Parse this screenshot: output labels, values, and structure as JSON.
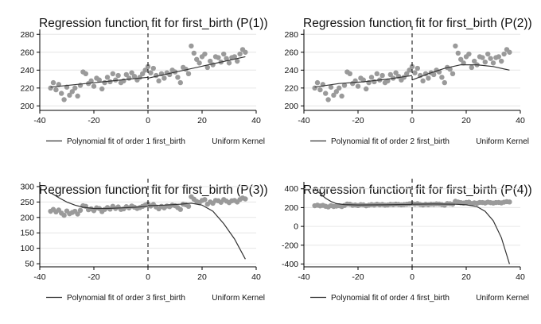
{
  "chart_data": [
    {
      "type": "scatter",
      "title": "Regression function fit for first_birth (P(1))",
      "xlim": [
        -40,
        40
      ],
      "ylim": [
        195,
        282
      ],
      "xticks": [
        -40,
        -20,
        0,
        20,
        40
      ],
      "yticks": [
        200,
        220,
        240,
        260,
        280
      ],
      "xtick_labels": [
        "-40",
        "-20",
        "0",
        "20",
        "40"
      ],
      "ytick_labels": [
        "200",
        "220",
        "240",
        "260",
        "280"
      ],
      "grid": true,
      "cutoff": 0,
      "legend": {
        "position": "bottom",
        "entries": [
          "Polynomial fit of order 1 first_birth",
          "Uniform Kernel"
        ]
      },
      "series": [
        {
          "kind": "points",
          "x": [
            -36,
            -35,
            -34,
            -33,
            -32,
            -31,
            -30,
            -29,
            -28,
            -27,
            -26,
            -25,
            -24,
            -23,
            -22,
            -21,
            -20,
            -19,
            -18,
            -17,
            -16,
            -15,
            -14,
            -13,
            -12,
            -11,
            -10,
            -9,
            -8,
            -7,
            -6,
            -5,
            -4,
            -3,
            -2,
            -1,
            0,
            1,
            2,
            3,
            4,
            5,
            6,
            7,
            8,
            9,
            10,
            11,
            12,
            13,
            14,
            15,
            16,
            17,
            18,
            19,
            20,
            21,
            22,
            23,
            24,
            25,
            26,
            27,
            28,
            29,
            30,
            31,
            32,
            33,
            34,
            35,
            36
          ],
          "y": [
            220,
            226,
            218,
            224,
            214,
            207,
            221,
            212,
            216,
            220,
            211,
            223,
            238,
            236,
            225,
            228,
            222,
            231,
            229,
            219,
            226,
            232,
            227,
            236,
            229,
            234,
            226,
            228,
            235,
            231,
            237,
            233,
            229,
            232,
            236,
            240,
            244,
            237,
            242,
            234,
            228,
            236,
            231,
            237,
            235,
            240,
            238,
            232,
            226,
            243,
            241,
            236,
            267,
            259,
            252,
            248,
            255,
            258,
            243,
            250,
            246,
            255,
            254,
            249,
            258,
            253,
            248,
            254,
            255,
            250,
            258,
            263,
            260
          ]
        },
        {
          "kind": "fit",
          "segments": [
            {
              "x": [
                -36,
                0
              ],
              "y": [
                221,
                232
              ]
            },
            {
              "x": [
                0,
                36
              ],
              "y": [
                231,
                255
              ]
            }
          ]
        }
      ]
    },
    {
      "type": "scatter",
      "title": "Regression function fit for first_birth (P(2))",
      "xlim": [
        -40,
        40
      ],
      "ylim": [
        195,
        282
      ],
      "xticks": [
        -40,
        -20,
        0,
        20,
        40
      ],
      "yticks": [
        200,
        220,
        240,
        260,
        280
      ],
      "xtick_labels": [
        "-40",
        "-20",
        "0",
        "20",
        "40"
      ],
      "ytick_labels": [
        "200",
        "220",
        "240",
        "260",
        "280"
      ],
      "grid": true,
      "cutoff": 0,
      "legend": {
        "position": "bottom",
        "entries": [
          "Polynomial fit of order 2 first_birth",
          "Uniform Kernel"
        ]
      },
      "series": [
        {
          "kind": "points",
          "x": [
            -36,
            -35,
            -34,
            -33,
            -32,
            -31,
            -30,
            -29,
            -28,
            -27,
            -26,
            -25,
            -24,
            -23,
            -22,
            -21,
            -20,
            -19,
            -18,
            -17,
            -16,
            -15,
            -14,
            -13,
            -12,
            -11,
            -10,
            -9,
            -8,
            -7,
            -6,
            -5,
            -4,
            -3,
            -2,
            -1,
            0,
            1,
            2,
            3,
            4,
            5,
            6,
            7,
            8,
            9,
            10,
            11,
            12,
            13,
            14,
            15,
            16,
            17,
            18,
            19,
            20,
            21,
            22,
            23,
            24,
            25,
            26,
            27,
            28,
            29,
            30,
            31,
            32,
            33,
            34,
            35,
            36
          ],
          "y": [
            220,
            226,
            218,
            224,
            214,
            207,
            221,
            212,
            216,
            220,
            211,
            223,
            238,
            236,
            225,
            228,
            222,
            231,
            229,
            219,
            226,
            232,
            227,
            236,
            229,
            234,
            226,
            228,
            235,
            231,
            237,
            233,
            229,
            232,
            236,
            240,
            244,
            237,
            242,
            234,
            228,
            236,
            231,
            237,
            235,
            240,
            238,
            232,
            226,
            243,
            241,
            236,
            267,
            259,
            252,
            248,
            255,
            258,
            243,
            250,
            246,
            255,
            254,
            249,
            258,
            253,
            248,
            254,
            255,
            250,
            258,
            263,
            260
          ]
        },
        {
          "kind": "fit",
          "segments": [
            {
              "x": [
                -36,
                -27,
                -18,
                -9,
                0
              ],
              "y": [
                221,
                225,
                227,
                230,
                234
              ]
            },
            {
              "x": [
                0,
                6,
                12,
                18,
                24,
                30,
                36
              ],
              "y": [
                229,
                236,
                242,
                246,
                246,
                244,
                240
              ]
            }
          ]
        }
      ]
    },
    {
      "type": "scatter",
      "title": "Regression function fit for first_birth (P(3))",
      "xlim": [
        -40,
        40
      ],
      "ylim": [
        40,
        305
      ],
      "xticks": [
        -40,
        -20,
        0,
        20,
        40
      ],
      "yticks": [
        50,
        100,
        150,
        200,
        250,
        300
      ],
      "xtick_labels": [
        "-40",
        "-20",
        "0",
        "20",
        "40"
      ],
      "ytick_labels": [
        "50",
        "100",
        "150",
        "200",
        "250",
        "300"
      ],
      "grid": true,
      "cutoff": 0,
      "legend": {
        "position": "bottom",
        "entries": [
          "Polynomial fit of order 3 first_birth",
          "Uniform Kernel"
        ]
      },
      "series": [
        {
          "kind": "points",
          "x": [
            -36,
            -35,
            -34,
            -33,
            -32,
            -31,
            -30,
            -29,
            -28,
            -27,
            -26,
            -25,
            -24,
            -23,
            -22,
            -21,
            -20,
            -19,
            -18,
            -17,
            -16,
            -15,
            -14,
            -13,
            -12,
            -11,
            -10,
            -9,
            -8,
            -7,
            -6,
            -5,
            -4,
            -3,
            -2,
            -1,
            0,
            1,
            2,
            3,
            4,
            5,
            6,
            7,
            8,
            9,
            10,
            11,
            12,
            13,
            14,
            15,
            16,
            17,
            18,
            19,
            20,
            21,
            22,
            23,
            24,
            25,
            26,
            27,
            28,
            29,
            30,
            31,
            32,
            33,
            34,
            35,
            36
          ],
          "y": [
            220,
            226,
            218,
            224,
            214,
            207,
            221,
            212,
            216,
            220,
            211,
            223,
            238,
            236,
            225,
            228,
            222,
            231,
            229,
            219,
            226,
            232,
            227,
            236,
            229,
            234,
            226,
            228,
            235,
            231,
            237,
            233,
            229,
            232,
            236,
            240,
            244,
            237,
            242,
            234,
            228,
            236,
            231,
            237,
            235,
            240,
            238,
            232,
            226,
            243,
            241,
            236,
            267,
            259,
            252,
            248,
            255,
            258,
            243,
            250,
            246,
            255,
            254,
            249,
            258,
            253,
            248,
            254,
            255,
            250,
            258,
            263,
            260
          ]
        },
        {
          "kind": "fit",
          "segments": [
            {
              "x": [
                -36,
                -33,
                -30,
                -27,
                -24,
                -20,
                -15,
                -10,
                -5,
                0
              ],
              "y": [
                280,
                264,
                250,
                240,
                233,
                229,
                229,
                231,
                233,
                236
              ]
            },
            {
              "x": [
                0,
                6,
                12,
                16,
                20,
                24,
                28,
                32,
                36
              ],
              "y": [
                238,
                240,
                243,
                246,
                240,
                220,
                180,
                130,
                65
              ]
            }
          ]
        }
      ]
    },
    {
      "type": "scatter",
      "title": "Regression function fit for first_birth (P(4))",
      "xlim": [
        -40,
        40
      ],
      "ylim": [
        -430,
        440
      ],
      "xticks": [
        -40,
        -20,
        0,
        20,
        40
      ],
      "yticks": [
        -400,
        -200,
        0,
        200,
        400
      ],
      "xtick_labels": [
        "-40",
        "-20",
        "0",
        "20",
        "40"
      ],
      "ytick_labels": [
        "-400",
        "-200",
        "0",
        "200",
        "400"
      ],
      "grid": true,
      "cutoff": 0,
      "legend": {
        "position": "bottom",
        "entries": [
          "Polynomial fit of order 4 first_birth",
          "Uniform Kernel"
        ]
      },
      "series": [
        {
          "kind": "points",
          "x": [
            -36,
            -35,
            -34,
            -33,
            -32,
            -31,
            -30,
            -29,
            -28,
            -27,
            -26,
            -25,
            -24,
            -23,
            -22,
            -21,
            -20,
            -19,
            -18,
            -17,
            -16,
            -15,
            -14,
            -13,
            -12,
            -11,
            -10,
            -9,
            -8,
            -7,
            -6,
            -5,
            -4,
            -3,
            -2,
            -1,
            0,
            1,
            2,
            3,
            4,
            5,
            6,
            7,
            8,
            9,
            10,
            11,
            12,
            13,
            14,
            15,
            16,
            17,
            18,
            19,
            20,
            21,
            22,
            23,
            24,
            25,
            26,
            27,
            28,
            29,
            30,
            31,
            32,
            33,
            34,
            35,
            36
          ],
          "y": [
            220,
            226,
            218,
            224,
            214,
            207,
            221,
            212,
            216,
            220,
            211,
            223,
            238,
            236,
            225,
            228,
            222,
            231,
            229,
            219,
            226,
            232,
            227,
            236,
            229,
            234,
            226,
            228,
            235,
            231,
            237,
            233,
            229,
            232,
            236,
            240,
            244,
            237,
            242,
            234,
            228,
            236,
            231,
            237,
            235,
            240,
            238,
            232,
            226,
            243,
            241,
            236,
            267,
            259,
            252,
            248,
            255,
            258,
            243,
            250,
            246,
            255,
            254,
            249,
            258,
            253,
            248,
            254,
            255,
            250,
            258,
            263,
            260
          ]
        },
        {
          "kind": "fit",
          "segments": [
            {
              "x": [
                -36,
                -34,
                -32,
                -30,
                -28,
                -25,
                -20,
                -10,
                0
              ],
              "y": [
                400,
                350,
                300,
                265,
                242,
                232,
                228,
                230,
                234
              ]
            },
            {
              "x": [
                0,
                8,
                16,
                20,
                24,
                27,
                30,
                33,
                36
              ],
              "y": [
                236,
                238,
                236,
                230,
                210,
                160,
                60,
                -120,
                -400
              ]
            }
          ]
        }
      ]
    }
  ]
}
